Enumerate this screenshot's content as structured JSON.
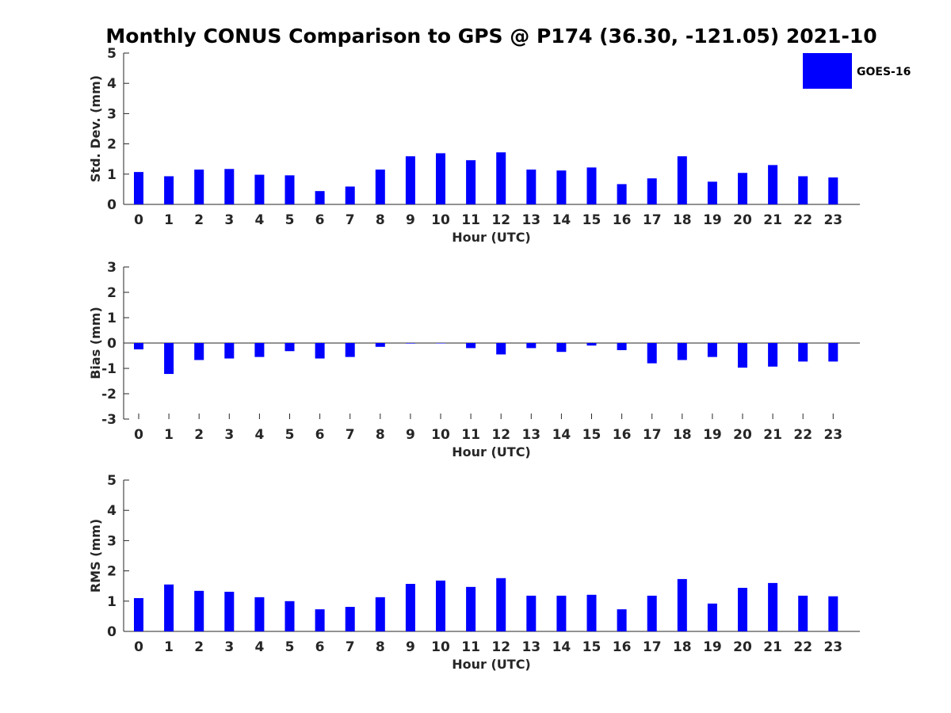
{
  "title": "Monthly CONUS Comparison to GPS @ P174 (36.30, -121.05) 2021-10",
  "legend": {
    "label": "GOES-16",
    "color": "#0000ff",
    "placement": "top-right"
  },
  "chart_data": [
    {
      "type": "bar",
      "xlabel": "Hour (UTC)",
      "ylabel": "Std. Dev. (mm)",
      "ylim": [
        0,
        5
      ],
      "yticks": [
        0,
        1,
        2,
        3,
        4,
        5
      ],
      "categories": [
        "0",
        "1",
        "2",
        "3",
        "4",
        "5",
        "6",
        "7",
        "8",
        "9",
        "10",
        "11",
        "12",
        "13",
        "14",
        "15",
        "16",
        "17",
        "18",
        "19",
        "20",
        "21",
        "22",
        "23"
      ],
      "series": [
        {
          "name": "GOES-16",
          "color": "#0000ff",
          "values": [
            1.07,
            0.93,
            1.15,
            1.17,
            0.98,
            0.96,
            0.44,
            0.59,
            1.15,
            1.59,
            1.69,
            1.46,
            1.72,
            1.15,
            1.12,
            1.22,
            0.67,
            0.86,
            1.59,
            0.75,
            1.04,
            1.3,
            0.93,
            0.89
          ]
        }
      ],
      "grid": false
    },
    {
      "type": "bar",
      "xlabel": "Hour (UTC)",
      "ylabel": "Bias (mm)",
      "ylim": [
        -3,
        3
      ],
      "yticks": [
        -3,
        -2,
        -1,
        0,
        1,
        2,
        3
      ],
      "categories": [
        "0",
        "1",
        "2",
        "3",
        "4",
        "5",
        "6",
        "7",
        "8",
        "9",
        "10",
        "11",
        "12",
        "13",
        "14",
        "15",
        "16",
        "17",
        "18",
        "19",
        "20",
        "21",
        "22",
        "23"
      ],
      "series": [
        {
          "name": "GOES-16",
          "color": "#0000ff",
          "values": [
            -0.25,
            -1.22,
            -0.67,
            -0.61,
            -0.55,
            -0.32,
            -0.61,
            -0.55,
            -0.15,
            -0.02,
            -0.01,
            -0.2,
            -0.45,
            -0.2,
            -0.35,
            -0.1,
            -0.28,
            -0.8,
            -0.67,
            -0.55,
            -0.97,
            -0.93,
            -0.73,
            -0.73
          ]
        }
      ],
      "grid": false
    },
    {
      "type": "bar",
      "xlabel": "Hour (UTC)",
      "ylabel": "RMS (mm)",
      "ylim": [
        0,
        5
      ],
      "yticks": [
        0,
        1,
        2,
        3,
        4,
        5
      ],
      "categories": [
        "0",
        "1",
        "2",
        "3",
        "4",
        "5",
        "6",
        "7",
        "8",
        "9",
        "10",
        "11",
        "12",
        "13",
        "14",
        "15",
        "16",
        "17",
        "18",
        "19",
        "20",
        "21",
        "22",
        "23"
      ],
      "series": [
        {
          "name": "GOES-16",
          "color": "#0000ff",
          "values": [
            1.1,
            1.55,
            1.34,
            1.31,
            1.13,
            1.0,
            0.73,
            0.81,
            1.13,
            1.57,
            1.68,
            1.47,
            1.76,
            1.18,
            1.18,
            1.21,
            0.73,
            1.18,
            1.73,
            0.92,
            1.44,
            1.6,
            1.18,
            1.16
          ]
        }
      ],
      "grid": false
    }
  ]
}
